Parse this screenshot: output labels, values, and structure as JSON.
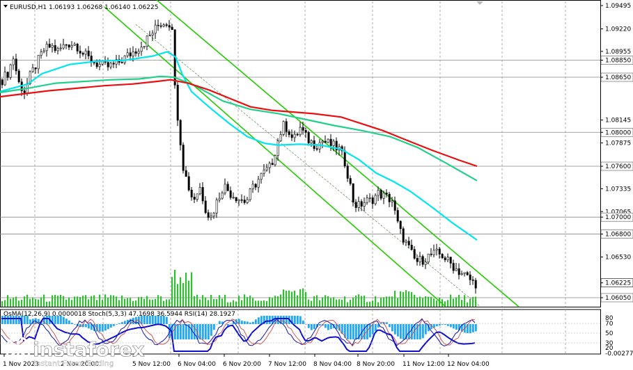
{
  "terminal": {
    "symbol_header": "EURUSD,H1  1.06193 1.06268 1.06140 1.06225",
    "indicator_header": "OsMA(12,26,9) 0.0000018  Stoch(5,3,3) 47.1698 36.5944  RSI(14) 28.1927",
    "logo_text": "instaforex",
    "logo_subtext": "Instant Forex Trading"
  },
  "chart_data": {
    "type": "line",
    "symbol": "EURUSD",
    "timeframe": "H1",
    "ohlc": {
      "open": 1.06193,
      "high": 1.06268,
      "low": 1.0614,
      "close": 1.06225
    },
    "last_price": "1.06225",
    "price_axis_labels": [
      "1.09495",
      "1.09220",
      "1.08955",
      "1.08850",
      "1.08650",
      "1.08145",
      "1.08000",
      "1.07875",
      "1.07600",
      "1.07335",
      "1.07065",
      "1.07000",
      "1.06800",
      "1.06530",
      "1.06225",
      "1.06050"
    ],
    "level_labels": [
      "1.08850",
      "1.08650",
      "1.08000",
      "1.07600",
      "1.07000",
      "1.06800",
      "1.06050"
    ],
    "time_labels": [
      "1 Nov 2023",
      "2 Nov 20:00",
      "5 Nov 12:00",
      "6 Nov 04:00",
      "6 Nov 20:00",
      "7 Nov 12:00",
      "8 Nov 04:00",
      "8 Nov 20:00",
      "11 Nov 12:00",
      "12 Nov 04:00"
    ],
    "series_colors": {
      "candles": "#000000",
      "ema_fast": "#00e5ee",
      "ema_mid": "#22d08a",
      "ema_slow": "#e81010",
      "channel": "#22cc00",
      "volume": "#33bb33",
      "osma": "#22aaee",
      "stoch_main": "#1010aa",
      "stoch_signal": "#cc4444",
      "rsi": "#1010cc"
    },
    "indicator_axis_labels": [
      "80",
      "70",
      "50",
      "30",
      "20",
      "-0.002773"
    ],
    "indicators": {
      "osma": "0.0000018",
      "stoch_main": "47.1698",
      "stoch_signal": "36.5944",
      "rsi": "28.1927"
    }
  }
}
